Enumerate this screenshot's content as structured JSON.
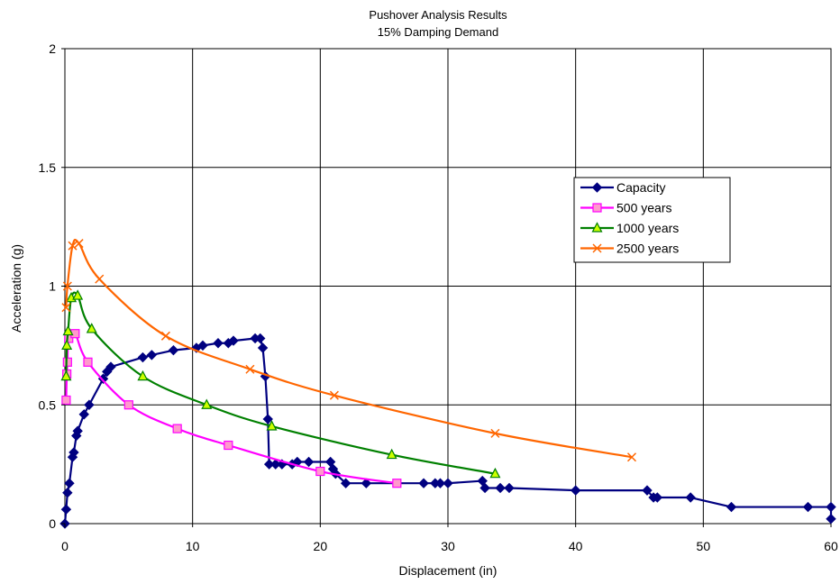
{
  "chart_data": {
    "type": "line",
    "title": "Pushover Analysis Results",
    "subtitle": "15% Damping Demand",
    "xlabel": "Displacement (in)",
    "ylabel": "Acceleration (g)",
    "xlim": [
      0,
      60
    ],
    "ylim": [
      0,
      2
    ],
    "xticks": [
      "0",
      "10",
      "20",
      "30",
      "40",
      "50",
      "60"
    ],
    "yticks": [
      "0",
      "0.5",
      "1",
      "1.5",
      "2"
    ],
    "grid": true,
    "legend_position": "right",
    "series": [
      {
        "name": "Capacity",
        "color": "#000080",
        "marker": "diamond",
        "points": [
          [
            0,
            0
          ],
          [
            0.1,
            0.06
          ],
          [
            0.2,
            0.13
          ],
          [
            0.35,
            0.17
          ],
          [
            0.6,
            0.28
          ],
          [
            0.7,
            0.3
          ],
          [
            0.9,
            0.37
          ],
          [
            1.0,
            0.39
          ],
          [
            1.5,
            0.46
          ],
          [
            1.9,
            0.5
          ],
          [
            3.0,
            0.61
          ],
          [
            3.3,
            0.64
          ],
          [
            3.6,
            0.66
          ],
          [
            6.1,
            0.7
          ],
          [
            6.8,
            0.71
          ],
          [
            8.5,
            0.73
          ],
          [
            10.3,
            0.74
          ],
          [
            10.8,
            0.75
          ],
          [
            12.0,
            0.76
          ],
          [
            12.8,
            0.76
          ],
          [
            13.2,
            0.77
          ],
          [
            14.9,
            0.78
          ],
          [
            15.3,
            0.78
          ],
          [
            15.5,
            0.74
          ],
          [
            15.7,
            0.62
          ],
          [
            15.9,
            0.44
          ],
          [
            16.0,
            0.25
          ],
          [
            16.5,
            0.25
          ],
          [
            17.0,
            0.25
          ],
          [
            17.8,
            0.25
          ],
          [
            18.2,
            0.26
          ],
          [
            19.1,
            0.26
          ],
          [
            20.8,
            0.26
          ],
          [
            21.0,
            0.23
          ],
          [
            21.2,
            0.21
          ],
          [
            22.0,
            0.17
          ],
          [
            23.6,
            0.17
          ],
          [
            28.1,
            0.17
          ],
          [
            29.0,
            0.17
          ],
          [
            29.4,
            0.17
          ],
          [
            30.0,
            0.17
          ],
          [
            32.7,
            0.18
          ],
          [
            32.9,
            0.15
          ],
          [
            34.1,
            0.15
          ],
          [
            34.8,
            0.15
          ],
          [
            40.0,
            0.14
          ],
          [
            45.6,
            0.14
          ],
          [
            46.1,
            0.11
          ],
          [
            46.4,
            0.11
          ],
          [
            49.0,
            0.11
          ],
          [
            52.2,
            0.07
          ],
          [
            58.2,
            0.07
          ],
          [
            60.0,
            0.07
          ],
          [
            60.0,
            0.02
          ]
        ]
      },
      {
        "name": "500 years",
        "color": "#FF00FF",
        "marker": "square",
        "points": [
          [
            0.1,
            0.52
          ],
          [
            0.15,
            0.63
          ],
          [
            0.2,
            0.68
          ],
          [
            0.3,
            0.78
          ],
          [
            0.8,
            0.8
          ],
          [
            1.8,
            0.68
          ],
          [
            5.0,
            0.5
          ],
          [
            8.8,
            0.4
          ],
          [
            12.8,
            0.33
          ],
          [
            20.0,
            0.22
          ],
          [
            26.0,
            0.17
          ]
        ]
      },
      {
        "name": "1000 years",
        "color": "#008000",
        "marker": "triangle",
        "points": [
          [
            0.1,
            0.62
          ],
          [
            0.15,
            0.75
          ],
          [
            0.25,
            0.81
          ],
          [
            0.5,
            0.95
          ],
          [
            1.0,
            0.96
          ],
          [
            2.1,
            0.82
          ],
          [
            6.1,
            0.62
          ],
          [
            11.1,
            0.5
          ],
          [
            16.2,
            0.41
          ],
          [
            25.6,
            0.29
          ],
          [
            33.7,
            0.21
          ]
        ]
      },
      {
        "name": "2500 years",
        "color": "#FF6600",
        "marker": "x",
        "points": [
          [
            0.1,
            0.91
          ],
          [
            0.2,
            1.0
          ],
          [
            0.6,
            1.17
          ],
          [
            1.1,
            1.18
          ],
          [
            2.7,
            1.03
          ],
          [
            7.9,
            0.79
          ],
          [
            14.5,
            0.65
          ],
          [
            21.1,
            0.54
          ],
          [
            33.7,
            0.38
          ],
          [
            44.4,
            0.28
          ]
        ]
      }
    ]
  }
}
